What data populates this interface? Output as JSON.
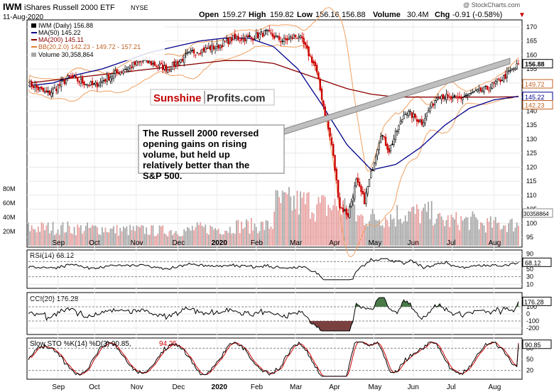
{
  "header": {
    "symbol": "IWM",
    "name": "iShares Russell 2000 ETF",
    "exchange": "NYSE",
    "date": "11-Aug-2020",
    "open_label": "Open",
    "open": "159.27",
    "high_label": "High",
    "high": "159.82",
    "low_label": "Low",
    "low": "156.16",
    "close": "156.88",
    "volume_label": "Volume",
    "volume": "30.4M",
    "chg_label": "Chg",
    "chg": "-0.91 (-0.58%)",
    "down_arrow": "▼",
    "copyright": "@ StockCharts.com"
  },
  "legend": {
    "price": "IWM (Daily) 156.88",
    "ma50": "MA(50) 145.22",
    "ma200": "MA(200) 145.11",
    "bb": "BB(20,2.0) 142.23 - 149.72 - 157.21",
    "volume": "Volume 30,358,864"
  },
  "watermark": {
    "part1": "Sunshine",
    "part2": "Profits.com"
  },
  "annotation": "The Russell 2000 reversed opening gains on rising volume, but held up relatively better than the S&P 500.",
  "price_axis": {
    "ticks": [
      "170",
      "165",
      "160",
      "155",
      "150",
      "145",
      "140",
      "135",
      "130",
      "125",
      "120",
      "115",
      "110",
      "105",
      "100",
      "95"
    ],
    "tags": [
      "156.88",
      "149.72",
      "145.22",
      "142.23"
    ]
  },
  "volume_axis": {
    "ticks": [
      "80M",
      "60M",
      "40M",
      "20M"
    ],
    "tag": "30358864"
  },
  "x_axis": {
    "labels": [
      "Sep",
      "Oct",
      "Nov",
      "Dec",
      "2020",
      "Feb",
      "Mar",
      "Apr",
      "May",
      "Jun",
      "Jul",
      "Aug"
    ]
  },
  "rsi": {
    "label": "RSI(14) 68.12",
    "ticks": [
      "90",
      "70",
      "50",
      "30",
      "10"
    ],
    "tag": "68.12"
  },
  "cci": {
    "label": "CCI(20) 176.28",
    "ticks": [
      "200",
      "100",
      "0",
      "-100",
      "-200"
    ],
    "tag": "176.28"
  },
  "sto": {
    "label_k": "Slow STO %K(14) %D(3) 90.85,",
    "label_d": "94.25",
    "ticks": [
      "80",
      "50",
      "20"
    ],
    "tag": "90.85"
  },
  "colors": {
    "up": "#000000",
    "down": "#cc0000",
    "ma50": "#00008b",
    "ma200": "#8b0000",
    "bb": "#f0a060",
    "vol_up": "#a8a8a8",
    "vol_down": "#e8a0a0",
    "cci_fill_pos": "#4a7a4a",
    "cci_fill_neg": "#7a4040"
  },
  "chart_data": {
    "type": "line",
    "title": "IWM (Daily) 156.88",
    "months": [
      "Sep",
      "Oct",
      "Nov",
      "Dec",
      "2020",
      "Feb",
      "Mar",
      "Apr",
      "May",
      "Jun",
      "Jul",
      "Aug"
    ],
    "ylim": [
      92,
      172
    ],
    "close_by_month": [
      150,
      153,
      158,
      163,
      166,
      165,
      155,
      122,
      130,
      140,
      147,
      156.88
    ],
    "close_path_x": [
      0,
      12,
      25,
      40,
      55,
      70,
      85,
      100,
      115,
      125,
      135,
      145,
      155,
      165,
      175,
      185,
      190,
      195,
      200,
      205,
      210,
      215,
      220,
      230,
      240,
      250,
      260,
      270,
      280,
      290,
      300
    ],
    "close_path_y": [
      150,
      146,
      152,
      149,
      154,
      158,
      155,
      161,
      163,
      166,
      166,
      168,
      165,
      167,
      156,
      128,
      106,
      103,
      115,
      108,
      120,
      132,
      126,
      140,
      136,
      146,
      144,
      146,
      148,
      152,
      157
    ],
    "ma50_path": [
      149,
      150,
      153,
      155,
      158,
      161,
      163,
      165,
      166,
      166,
      163,
      155,
      142,
      128,
      119,
      121,
      127,
      135,
      141,
      144,
      145.22
    ],
    "ma200_path": [
      150,
      151,
      152,
      153,
      154,
      155,
      156,
      157,
      158,
      158,
      157,
      154,
      151,
      148,
      146,
      145,
      145,
      145,
      145,
      145,
      145.11
    ],
    "volume_by_month_millions": [
      25,
      24,
      22,
      21,
      24,
      28,
      60,
      55,
      40,
      45,
      35,
      30
    ],
    "rsi_latest": 68.12,
    "rsi_range": [
      10,
      90
    ],
    "cci_latest": 176.28,
    "cci_range": [
      -250,
      250
    ],
    "sto_k_latest": 90.85,
    "sto_d_latest": 94.25,
    "sto_range": [
      0,
      100
    ]
  }
}
